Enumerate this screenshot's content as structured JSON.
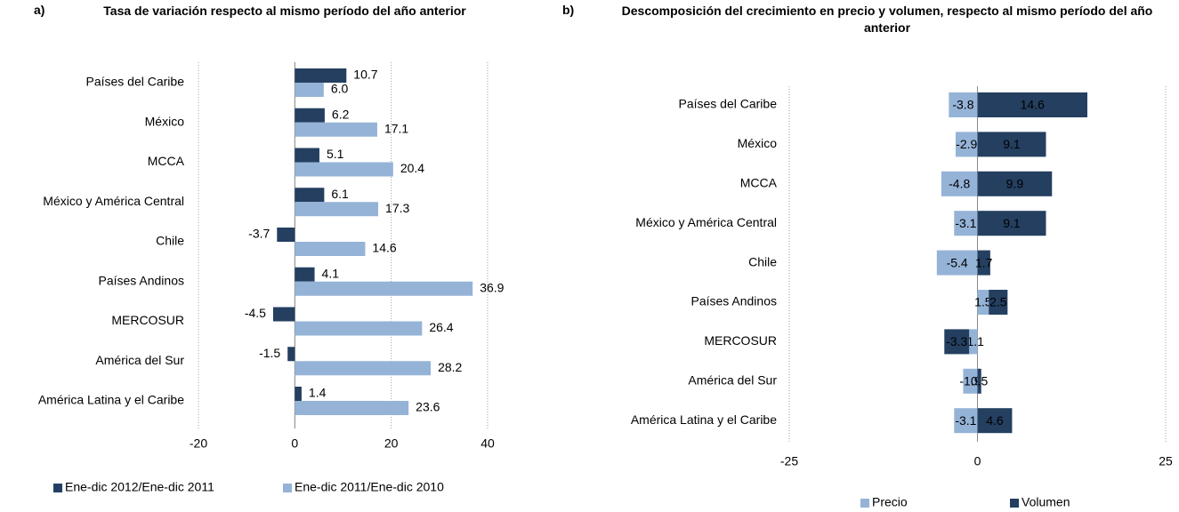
{
  "chart_data": [
    {
      "type": "bar",
      "label": "a)",
      "title": "Tasa de variación respecto al mismo período del año anterior",
      "orientation": "horizontal",
      "mode": "grouped",
      "categories": [
        "Países del Caribe",
        "México",
        "MCCA",
        "México y América Central",
        "Chile",
        "Países Andinos",
        "MERCOSUR",
        "América del Sur",
        "América Latina y el Caribe"
      ],
      "series": [
        {
          "name": "Ene-dic 2012/Ene-dic 2011",
          "color": "#243f60",
          "values": [
            10.7,
            6.2,
            5.1,
            6.1,
            -3.7,
            4.1,
            -4.5,
            -1.5,
            1.4
          ]
        },
        {
          "name": "Ene-dic 2011/Ene-dic 2010",
          "color": "#95b3d7",
          "values": [
            6,
            17.1,
            20.4,
            17.3,
            14.6,
            36.9,
            26.4,
            28.2,
            23.6
          ],
          "value_labels": [
            "6.0",
            "17.1",
            "20.4",
            "17.3",
            "14.6",
            "36.9",
            "26.4",
            "28.2",
            "23.6"
          ]
        }
      ],
      "xlim": [
        -20,
        40
      ],
      "xticks": [
        -20,
        0,
        20,
        40
      ],
      "grid": true,
      "legend": "bottom"
    },
    {
      "type": "bar",
      "label": "b)",
      "title": "Descomposición del crecimiento en precio y volumen, respecto al mismo período del año anterior",
      "orientation": "horizontal",
      "mode": "stacked",
      "categories": [
        "Países del Caribe",
        "México",
        "MCCA",
        "México y América Central",
        "Chile",
        "Países Andinos",
        "MERCOSUR",
        "América del Sur",
        "América Latina y el Caribe"
      ],
      "series": [
        {
          "name": "Precio",
          "color": "#95b3d7",
          "values": [
            -3.8,
            -2.9,
            -4.8,
            -3.1,
            -5.4,
            1.5,
            -1.1,
            -1.9,
            -3.1
          ]
        },
        {
          "name": "Volumen",
          "color": "#243f60",
          "values": [
            14.6,
            9.1,
            9.9,
            9.1,
            1.7,
            2.5,
            -3.3,
            0.5,
            4.6
          ]
        }
      ],
      "xlim": [
        -25,
        25
      ],
      "xticks": [
        -25,
        0,
        25
      ],
      "grid": true,
      "legend": "bottom"
    }
  ]
}
